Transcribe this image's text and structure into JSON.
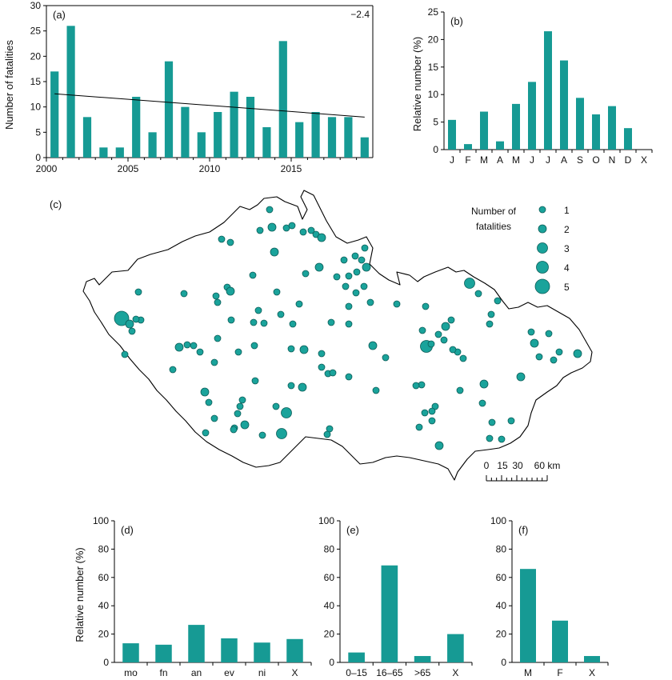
{
  "chart_data": [
    {
      "id": "a",
      "type": "bar",
      "panel_label": "(a)",
      "annotation": "−2.4",
      "ylabel": "Number of fatalities",
      "xlabel": "",
      "ylim": [
        0,
        30
      ],
      "yticks": [
        0,
        5,
        10,
        15,
        20,
        25,
        30
      ],
      "xticks": [
        2000,
        2005,
        2010,
        2015
      ],
      "x": [
        2000,
        2001,
        2002,
        2003,
        2004,
        2005,
        2006,
        2007,
        2008,
        2009,
        2010,
        2011,
        2012,
        2013,
        2014,
        2015,
        2016,
        2017,
        2018,
        2019
      ],
      "values": [
        17,
        26,
        8,
        2,
        2,
        12,
        5,
        19,
        10,
        5,
        9,
        13,
        12,
        6,
        23,
        7,
        9,
        8,
        8,
        4
      ],
      "trend": {
        "x": [
          2000,
          2019
        ],
        "y": [
          12.6,
          8.0
        ]
      }
    },
    {
      "id": "b",
      "type": "bar",
      "panel_label": "(b)",
      "ylabel": "Relative number (%)",
      "xlabel": "",
      "ylim": [
        0,
        25
      ],
      "yticks": [
        0,
        5,
        10,
        15,
        20,
        25
      ],
      "categories": [
        "J",
        "F",
        "M",
        "A",
        "M",
        "J",
        "J",
        "A",
        "S",
        "O",
        "N",
        "D",
        "X"
      ],
      "values": [
        5.4,
        1.0,
        6.9,
        1.5,
        8.3,
        12.3,
        21.5,
        16.2,
        9.4,
        6.4,
        7.9,
        3.9,
        0
      ]
    },
    {
      "id": "c",
      "type": "scatter",
      "panel_label": "(c)",
      "legend_title": [
        "Number of",
        "fatalities"
      ],
      "legend_values": [
        1,
        2,
        3,
        4,
        5
      ],
      "legend": "top-right",
      "scalebar_labels": [
        "0",
        "15",
        "30",
        "60 km"
      ]
    },
    {
      "id": "d",
      "type": "bar",
      "panel_label": "(d)",
      "ylabel": "Relative number (%)",
      "xlabel": "",
      "ylim": [
        0,
        100
      ],
      "yticks": [
        0,
        20,
        40,
        60,
        80,
        100
      ],
      "categories": [
        "mo",
        "fn",
        "an",
        "ev",
        "ni",
        "X"
      ],
      "values": [
        13.5,
        12.5,
        26.5,
        17.0,
        14.0,
        16.5
      ]
    },
    {
      "id": "e",
      "type": "bar",
      "panel_label": "(e)",
      "ylabel": "",
      "xlabel": "",
      "ylim": [
        0,
        100
      ],
      "yticks": [
        0,
        20,
        40,
        60,
        80,
        100
      ],
      "categories": [
        "0–15",
        "16–65",
        ">65",
        "X"
      ],
      "values": [
        7,
        68.5,
        4.5,
        20
      ]
    },
    {
      "id": "f",
      "type": "bar",
      "panel_label": "(f)",
      "ylabel": "",
      "xlabel": "",
      "ylim": [
        0,
        100
      ],
      "yticks": [
        0,
        20,
        40,
        60,
        80,
        100
      ],
      "categories": [
        "M",
        "F",
        "X"
      ],
      "values": [
        66,
        29.5,
        4.5
      ]
    }
  ]
}
